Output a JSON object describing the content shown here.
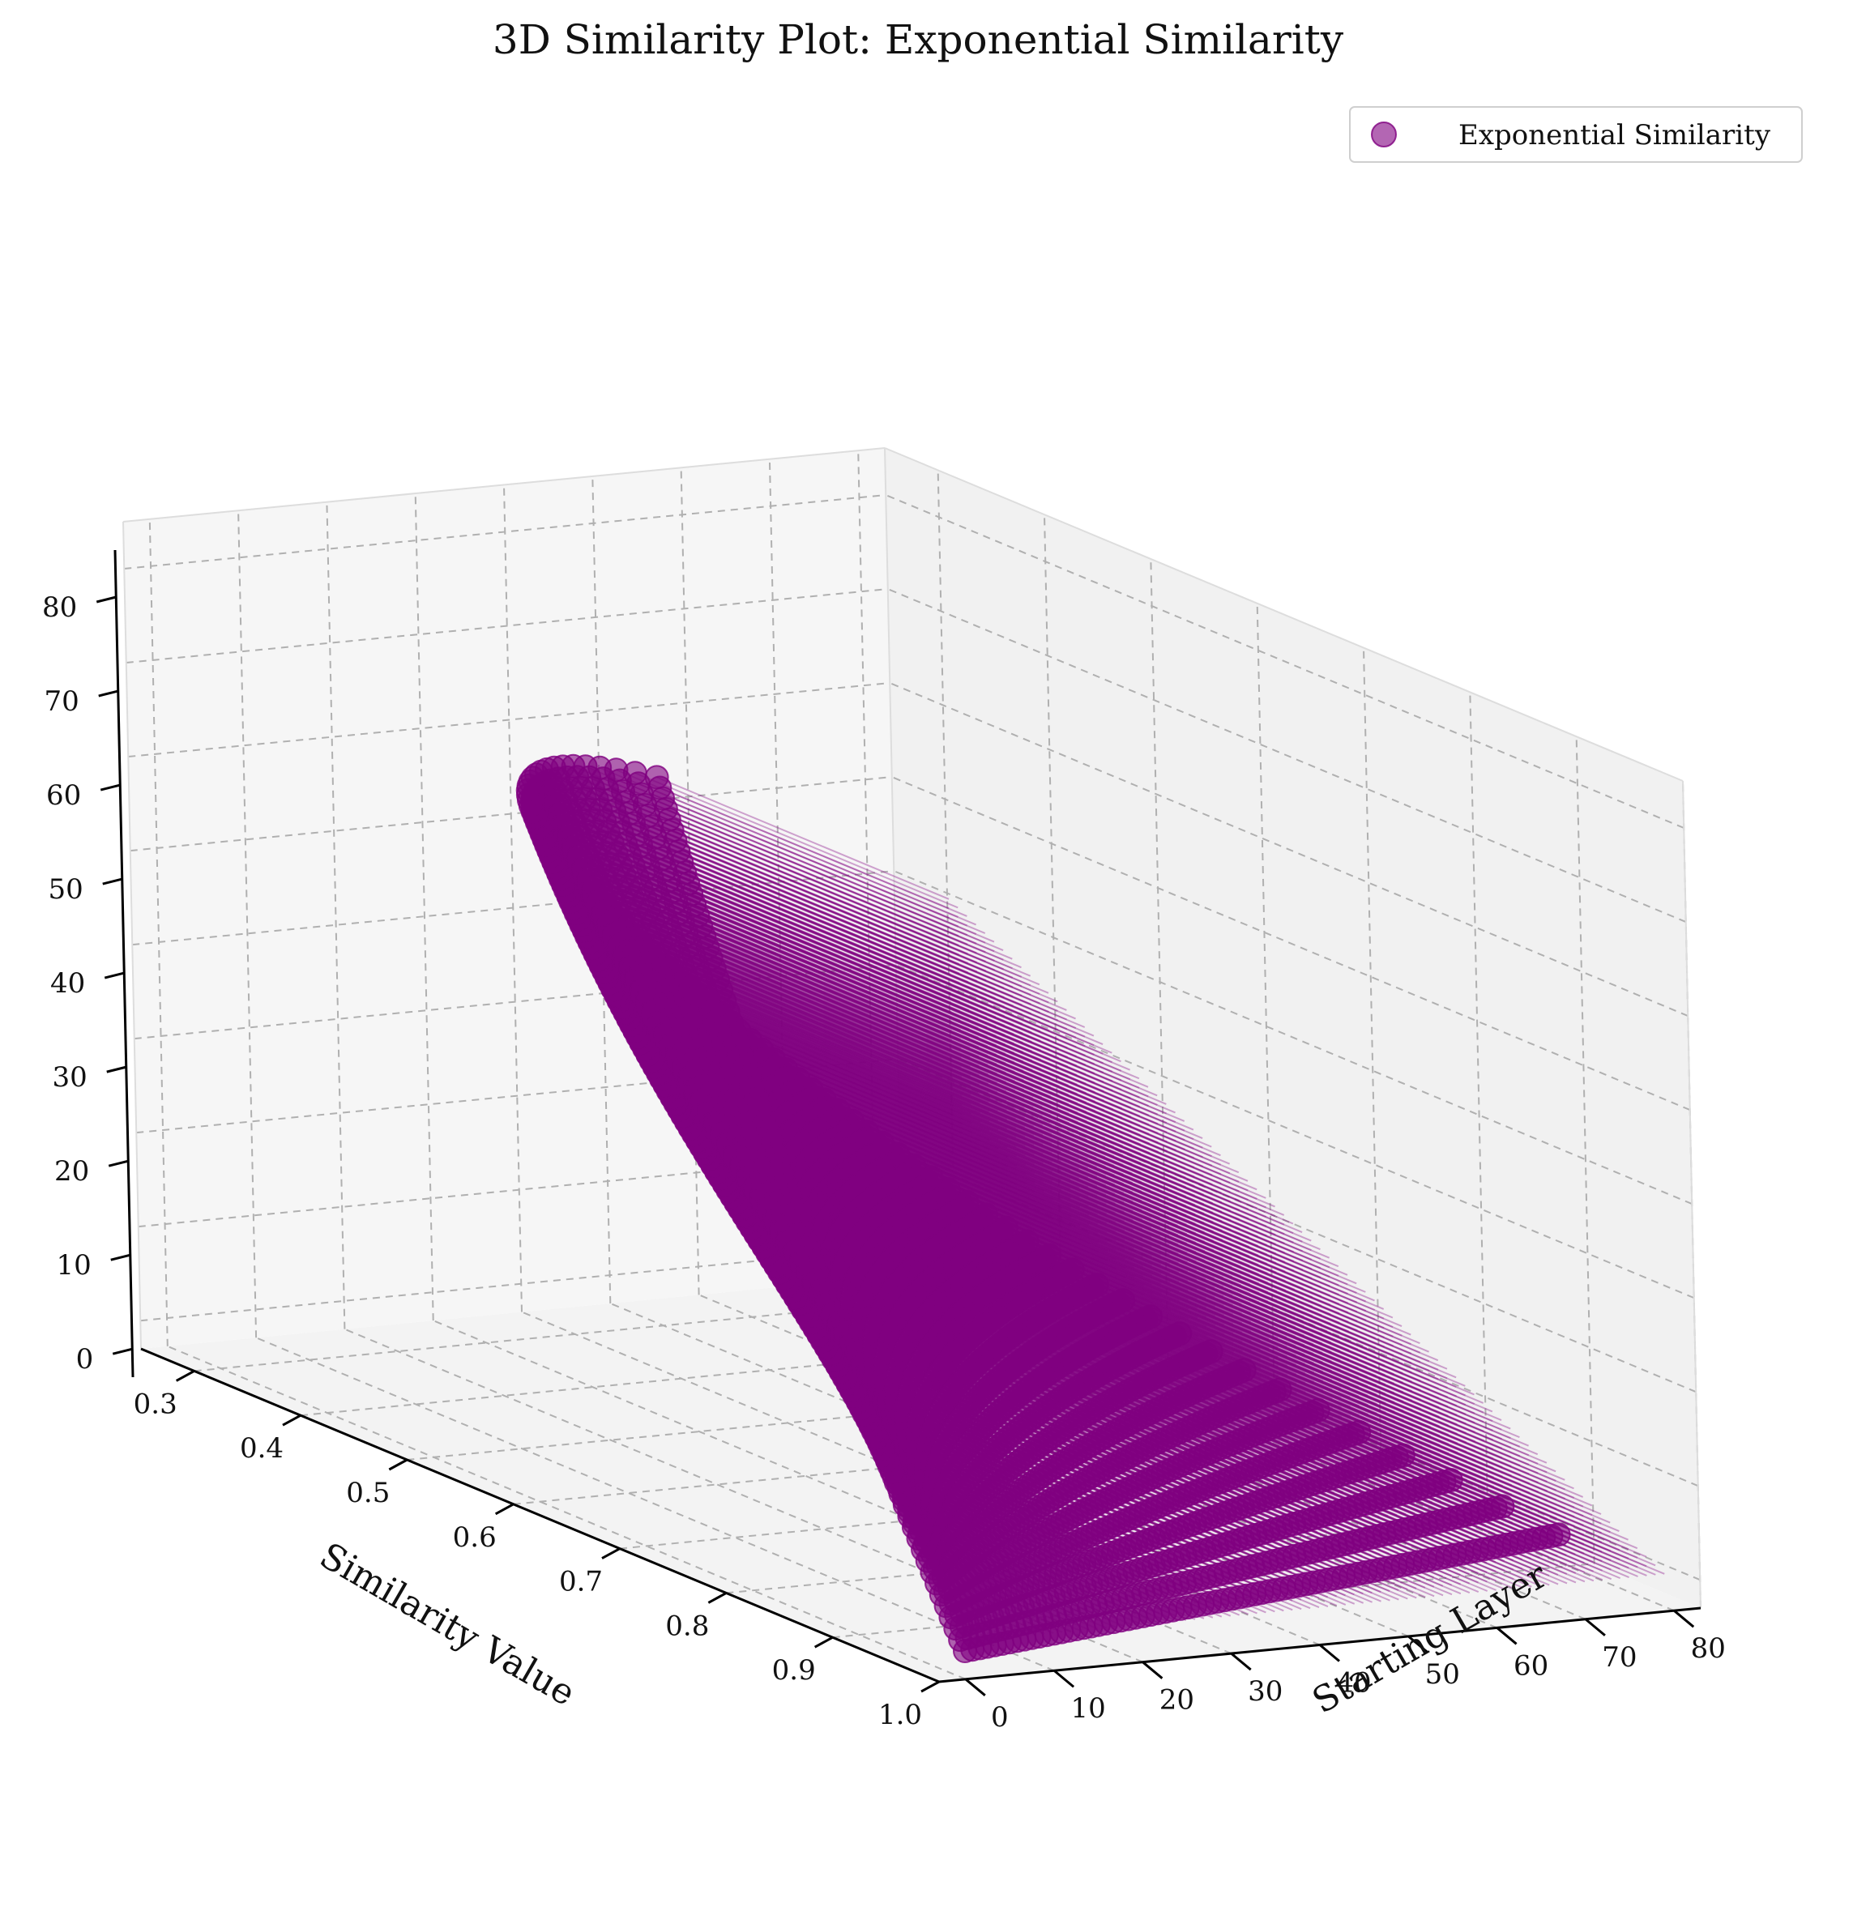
{
  "chart_data": {
    "type": "scatter3d",
    "title": "3D Similarity Plot: Exponential Similarity",
    "xlabel": "Starting Layer",
    "ylabel": "Similarity Value",
    "zlabel": "",
    "xlim": [
      -3,
      83
    ],
    "ylim": [
      0.25,
      1.0
    ],
    "zlim": [
      -3,
      85
    ],
    "x_ticks": [
      "0",
      "10",
      "20",
      "30",
      "40",
      "50",
      "60",
      "70",
      "80"
    ],
    "y_ticks": [
      "0.3",
      "0.4",
      "0.5",
      "0.6",
      "0.7",
      "0.8",
      "0.9",
      "1.0"
    ],
    "z_ticks": [
      "0",
      "10",
      "20",
      "30",
      "40",
      "50",
      "60",
      "70",
      "80"
    ],
    "grid": true,
    "legend": {
      "position": "top-right",
      "entries": [
        "Exponential Similarity"
      ]
    },
    "series": [
      {
        "name": "Exponential Similarity",
        "color": "#800080",
        "alpha": 0.6,
        "marker": "circle",
        "connector_lines": true,
        "generator": {
          "description": "one point per (starting layer, depth) pair; z = depth, y = similarity",
          "starting_layers": [
            0,
            80,
            1
          ],
          "depth_max": 80,
          "similarity_model": {
            "floor": 0.28,
            "base_range": 0.72,
            "rate_start": 0.006,
            "rate_slope": 0.0009
          }
        }
      }
    ]
  }
}
